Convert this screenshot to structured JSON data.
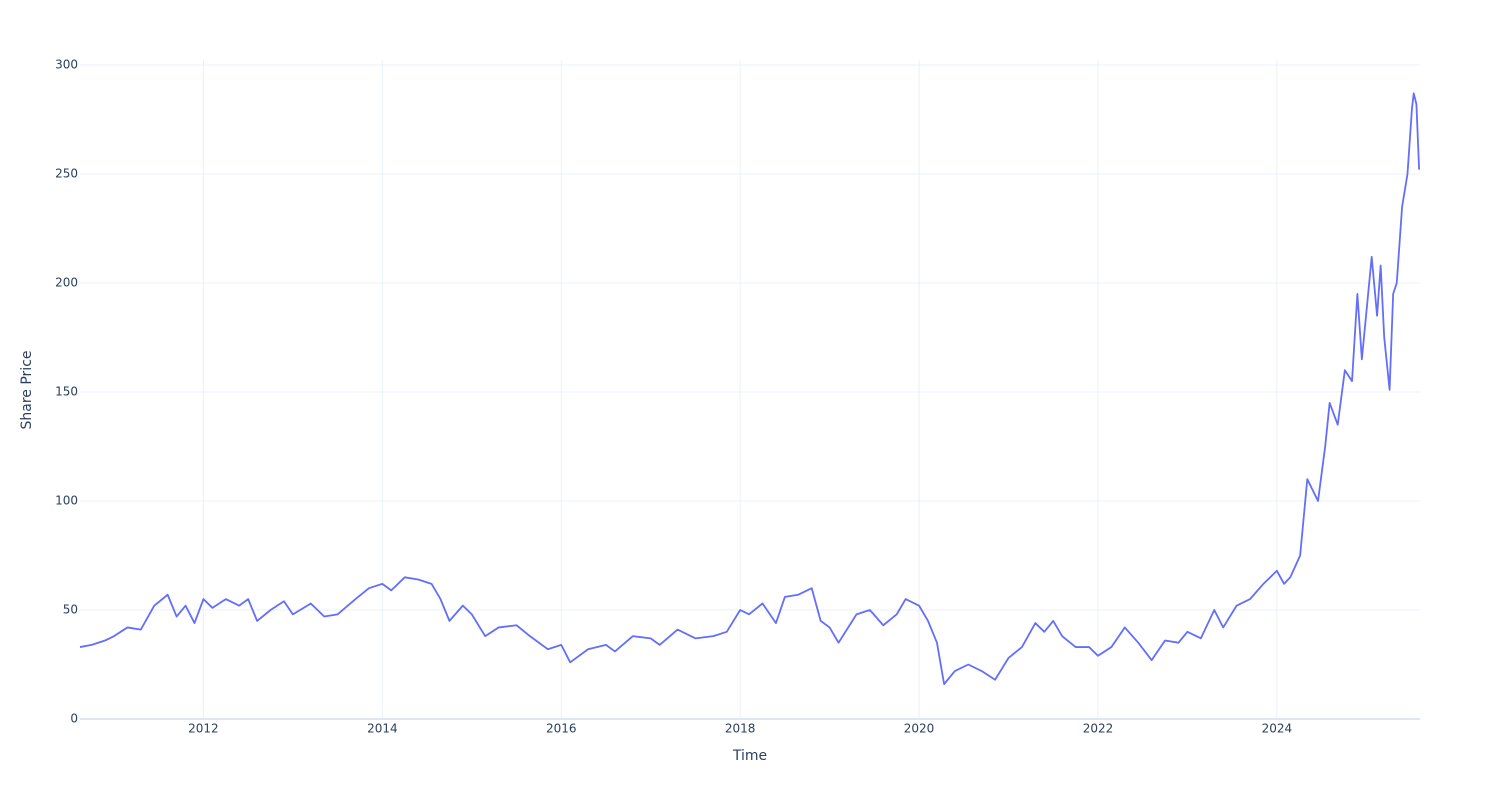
{
  "chart_data": {
    "type": "line",
    "xlabel": "Time",
    "ylabel": "Share Price",
    "x": [
      2010.62,
      2010.75,
      2010.9,
      2011.0,
      2011.15,
      2011.3,
      2011.45,
      2011.6,
      2011.7,
      2011.8,
      2011.9,
      2012.0,
      2012.1,
      2012.25,
      2012.4,
      2012.5,
      2012.6,
      2012.75,
      2012.9,
      2013.0,
      2013.2,
      2013.35,
      2013.5,
      2013.7,
      2013.85,
      2014.0,
      2014.1,
      2014.25,
      2014.4,
      2014.55,
      2014.65,
      2014.75,
      2014.9,
      2015.0,
      2015.15,
      2015.3,
      2015.5,
      2015.65,
      2015.85,
      2016.0,
      2016.1,
      2016.3,
      2016.5,
      2016.6,
      2016.8,
      2017.0,
      2017.1,
      2017.3,
      2017.5,
      2017.7,
      2017.85,
      2018.0,
      2018.1,
      2018.25,
      2018.4,
      2018.5,
      2018.65,
      2018.8,
      2018.9,
      2019.0,
      2019.1,
      2019.3,
      2019.45,
      2019.6,
      2019.75,
      2019.85,
      2020.0,
      2020.1,
      2020.2,
      2020.28,
      2020.4,
      2020.55,
      2020.7,
      2020.85,
      2021.0,
      2021.15,
      2021.3,
      2021.4,
      2021.5,
      2021.6,
      2021.75,
      2021.9,
      2022.0,
      2022.15,
      2022.3,
      2022.45,
      2022.6,
      2022.75,
      2022.9,
      2023.0,
      2023.15,
      2023.3,
      2023.4,
      2023.55,
      2023.7,
      2023.85,
      2024.0,
      2024.08,
      2024.15,
      2024.26,
      2024.34,
      2024.46,
      2024.54,
      2024.59,
      2024.68,
      2024.76,
      2024.84,
      2024.9,
      2024.95,
      2025.06,
      2025.12,
      2025.16,
      2025.2,
      2025.26,
      2025.3,
      2025.34,
      2025.4,
      2025.46,
      2025.51,
      2025.53,
      2025.56,
      2025.59
    ],
    "series": [
      {
        "name": "Share Price",
        "color": "#636efa",
        "values": [
          33,
          34,
          36,
          38,
          42,
          41,
          52,
          57,
          47,
          52,
          44,
          55,
          51,
          55,
          52,
          55,
          45,
          50,
          54,
          48,
          53,
          47,
          48,
          55,
          60,
          62,
          59,
          65,
          64,
          62,
          55,
          45,
          52,
          48,
          38,
          42,
          43,
          38,
          32,
          34,
          26,
          32,
          34,
          31,
          38,
          37,
          34,
          41,
          37,
          38,
          40,
          50,
          48,
          53,
          44,
          56,
          57,
          60,
          45,
          42,
          35,
          48,
          50,
          43,
          48,
          55,
          52,
          45,
          35,
          16,
          22,
          25,
          22,
          18,
          28,
          33,
          44,
          40,
          45,
          38,
          33,
          33,
          29,
          33,
          42,
          35,
          27,
          36,
          35,
          40,
          37,
          50,
          42,
          52,
          55,
          62,
          68,
          62,
          65,
          75,
          110,
          100,
          125,
          145,
          135,
          160,
          155,
          195,
          165,
          212,
          185,
          208,
          175,
          151,
          195,
          200,
          235,
          250,
          280,
          287,
          282,
          252
        ]
      }
    ],
    "xlim": [
      2010.62,
      2025.6
    ],
    "xticks": [
      2012,
      2014,
      2016,
      2018,
      2020,
      2022,
      2024
    ],
    "ylim": [
      0,
      300
    ],
    "yticks": [
      0,
      50,
      100,
      150,
      200,
      250,
      300
    ],
    "grid": true
  }
}
